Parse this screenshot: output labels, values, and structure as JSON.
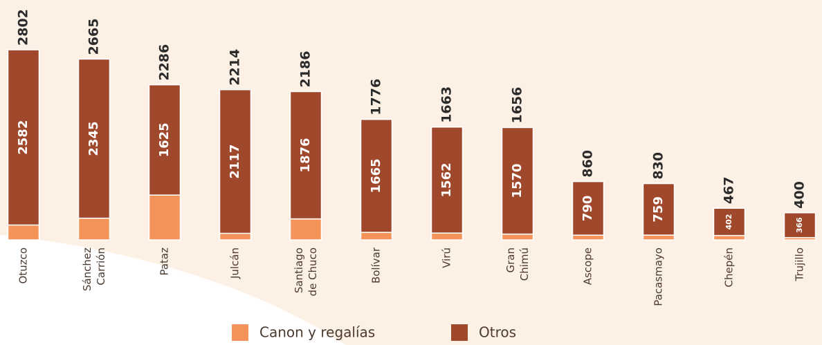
{
  "chart_data": {
    "type": "stacked_bar",
    "categories": [
      "Otuzco",
      "Sánchez\nCarrión",
      "Pataz",
      "Julcán",
      "Santiago\nde Chuco",
      "Bolívar",
      "Virú",
      "Gran\nChimú",
      "Ascope",
      "Pacasmayo",
      "Chepén",
      "Trujillo"
    ],
    "series": [
      {
        "name": "Canon y regalías",
        "color": "#f4935a",
        "values": [
          220,
          320,
          661,
          97,
          310,
          111,
          101,
          86,
          70,
          71,
          65,
          34
        ]
      },
      {
        "name": "Otros",
        "color": "#a0482b",
        "values": [
          2582,
          2345,
          1625,
          2117,
          1876,
          1665,
          1562,
          1570,
          790,
          759,
          402,
          366
        ]
      }
    ],
    "totals": [
      2802,
      2665,
      2286,
      2214,
      2186,
      1776,
      1663,
      1656,
      860,
      830,
      467,
      400
    ]
  }
}
